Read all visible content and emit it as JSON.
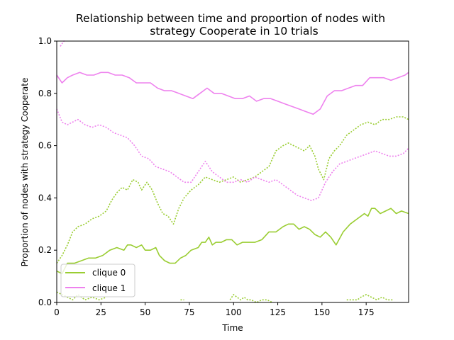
{
  "chart_data": {
    "type": "line",
    "title_line1": "Relationship between time and proportion of nodes with",
    "title_line2": "strategy Cooperate in 10 trials",
    "xlabel": "Time",
    "ylabel": "Proportion of nodes with strategy Cooperate",
    "xlim": [
      0,
      199
    ],
    "ylim": [
      0,
      1.0
    ],
    "xticks": [
      0,
      25,
      50,
      75,
      100,
      125,
      150,
      175
    ],
    "xtick_labels": [
      "0",
      "25",
      "50",
      "75",
      "100",
      "125",
      "150",
      "175"
    ],
    "yticks": [
      0,
      0.2,
      0.4,
      0.6,
      0.8,
      1.0
    ],
    "ytick_labels": [
      "0.0",
      "0.2",
      "0.4",
      "0.6",
      "0.8",
      "1.0"
    ],
    "grid": false,
    "legend_position": "lower-left",
    "legend": [
      {
        "label": "clique 0",
        "color": "#9acd32"
      },
      {
        "label": "clique 1",
        "color": "#ee82ee"
      }
    ],
    "series": [
      {
        "clique": 0,
        "style": "solid",
        "color": "#9acd32",
        "x": [
          0,
          3,
          6,
          10,
          14,
          18,
          22,
          26,
          30,
          34,
          38,
          40,
          42,
          45,
          48,
          50,
          53,
          56,
          58,
          61,
          64,
          67,
          70,
          73,
          76,
          80,
          82,
          84,
          86,
          88,
          90,
          93,
          96,
          99,
          102,
          105,
          108,
          112,
          116,
          120,
          124,
          128,
          131,
          134,
          137,
          140,
          143,
          146,
          149,
          152,
          155,
          158,
          162,
          166,
          170,
          174,
          176,
          178,
          180,
          183,
          186,
          189,
          192,
          195,
          199
        ],
        "y": [
          0.12,
          0.11,
          0.15,
          0.15,
          0.16,
          0.17,
          0.17,
          0.18,
          0.2,
          0.21,
          0.2,
          0.22,
          0.22,
          0.21,
          0.22,
          0.2,
          0.2,
          0.21,
          0.18,
          0.16,
          0.15,
          0.15,
          0.17,
          0.18,
          0.2,
          0.21,
          0.23,
          0.23,
          0.25,
          0.22,
          0.23,
          0.23,
          0.24,
          0.24,
          0.22,
          0.23,
          0.23,
          0.23,
          0.24,
          0.27,
          0.27,
          0.29,
          0.3,
          0.3,
          0.28,
          0.29,
          0.28,
          0.26,
          0.25,
          0.27,
          0.25,
          0.22,
          0.27,
          0.3,
          0.32,
          0.34,
          0.33,
          0.36,
          0.36,
          0.34,
          0.35,
          0.36,
          0.34,
          0.35,
          0.34
        ]
      },
      {
        "clique": 1,
        "style": "solid",
        "color": "#ee82ee",
        "x": [
          0,
          3,
          6,
          9,
          13,
          17,
          21,
          25,
          29,
          33,
          37,
          41,
          45,
          49,
          53,
          57,
          61,
          65,
          69,
          73,
          77,
          81,
          85,
          89,
          93,
          97,
          101,
          105,
          109,
          113,
          117,
          121,
          125,
          129,
          133,
          137,
          141,
          145,
          149,
          153,
          157,
          161,
          165,
          169,
          173,
          177,
          181,
          185,
          189,
          193,
          197,
          199
        ],
        "y": [
          0.87,
          0.84,
          0.86,
          0.87,
          0.88,
          0.87,
          0.87,
          0.88,
          0.88,
          0.87,
          0.87,
          0.86,
          0.84,
          0.84,
          0.84,
          0.82,
          0.81,
          0.81,
          0.8,
          0.79,
          0.78,
          0.8,
          0.82,
          0.8,
          0.8,
          0.79,
          0.78,
          0.78,
          0.79,
          0.77,
          0.78,
          0.78,
          0.77,
          0.76,
          0.75,
          0.74,
          0.73,
          0.72,
          0.74,
          0.79,
          0.81,
          0.81,
          0.82,
          0.83,
          0.83,
          0.86,
          0.86,
          0.86,
          0.85,
          0.86,
          0.87,
          0.88
        ]
      },
      {
        "clique": 0,
        "style": "dotted",
        "color": "#9acd32",
        "x": [
          0,
          3,
          6,
          9,
          12,
          16,
          20,
          24,
          28,
          31,
          34,
          37,
          40,
          43,
          46,
          48,
          51,
          54,
          57,
          60,
          63,
          66,
          69,
          72,
          76,
          80,
          84,
          88,
          92,
          96,
          100,
          104,
          108,
          112,
          116,
          120,
          124,
          128,
          131,
          134,
          137,
          140,
          143,
          146,
          148,
          151,
          154,
          157,
          160,
          164,
          168,
          172,
          176,
          180,
          184,
          188,
          192,
          196,
          199
        ],
        "y": [
          0.15,
          0.18,
          0.22,
          0.27,
          0.29,
          0.3,
          0.32,
          0.33,
          0.35,
          0.39,
          0.42,
          0.44,
          0.43,
          0.47,
          0.46,
          0.43,
          0.46,
          0.43,
          0.38,
          0.34,
          0.33,
          0.3,
          0.36,
          0.4,
          0.43,
          0.45,
          0.48,
          0.47,
          0.46,
          0.47,
          0.48,
          0.46,
          0.47,
          0.48,
          0.5,
          0.52,
          0.58,
          0.6,
          0.61,
          0.6,
          0.59,
          0.58,
          0.6,
          0.56,
          0.51,
          0.47,
          0.55,
          0.58,
          0.6,
          0.64,
          0.66,
          0.68,
          0.69,
          0.68,
          0.7,
          0.7,
          0.71,
          0.71,
          0.7
        ]
      },
      {
        "clique": 1,
        "style": "dotted",
        "color": "#ee82ee",
        "x": [
          0,
          3,
          6,
          9,
          12,
          16,
          20,
          24,
          28,
          32,
          36,
          40,
          44,
          48,
          52,
          56,
          60,
          64,
          68,
          72,
          76,
          80,
          84,
          88,
          92,
          96,
          100,
          104,
          108,
          112,
          116,
          120,
          124,
          128,
          132,
          136,
          140,
          144,
          148,
          152,
          156,
          160,
          164,
          168,
          172,
          176,
          180,
          184,
          188,
          192,
          196,
          199
        ],
        "y": [
          0.74,
          0.69,
          0.68,
          0.69,
          0.7,
          0.68,
          0.67,
          0.68,
          0.67,
          0.65,
          0.64,
          0.63,
          0.6,
          0.56,
          0.55,
          0.52,
          0.51,
          0.5,
          0.48,
          0.46,
          0.46,
          0.5,
          0.54,
          0.5,
          0.48,
          0.46,
          0.46,
          0.47,
          0.46,
          0.48,
          0.47,
          0.46,
          0.47,
          0.45,
          0.43,
          0.41,
          0.4,
          0.39,
          0.4,
          0.46,
          0.5,
          0.53,
          0.54,
          0.55,
          0.56,
          0.57,
          0.58,
          0.57,
          0.56,
          0.56,
          0.57,
          0.59
        ]
      },
      {
        "clique": 1,
        "style": "dotted",
        "color": "#ee82ee",
        "x": [
          2,
          3,
          4,
          5
        ],
        "y": [
          0.98,
          0.99,
          1.0,
          1.0
        ]
      },
      {
        "clique": 0,
        "style": "dotted",
        "color": "#9acd32",
        "x": [
          0,
          3,
          6,
          9,
          12,
          16,
          20,
          24,
          28
        ],
        "y": [
          0.04,
          0.03,
          0.02,
          0.01,
          0.03,
          0.01,
          0.02,
          0.01,
          0.02
        ]
      },
      {
        "clique": 0,
        "style": "dotted",
        "color": "#9acd32",
        "x": [
          70,
          72
        ],
        "y": [
          0.01,
          0.01
        ]
      },
      {
        "clique": 0,
        "style": "dotted",
        "color": "#9acd32",
        "x": [
          98,
          100,
          102,
          104,
          106,
          108,
          110,
          113,
          116,
          119,
          122
        ],
        "y": [
          0.01,
          0.03,
          0.02,
          0.01,
          0.02,
          0.01,
          0.01,
          0.0,
          0.01,
          0.01,
          0.0
        ]
      },
      {
        "clique": 0,
        "style": "dotted",
        "color": "#9acd32",
        "x": [
          164,
          167,
          170,
          172,
          175,
          178,
          181,
          184,
          187,
          190
        ],
        "y": [
          0.01,
          0.01,
          0.01,
          0.02,
          0.03,
          0.02,
          0.01,
          0.02,
          0.01,
          0.01
        ]
      }
    ]
  }
}
